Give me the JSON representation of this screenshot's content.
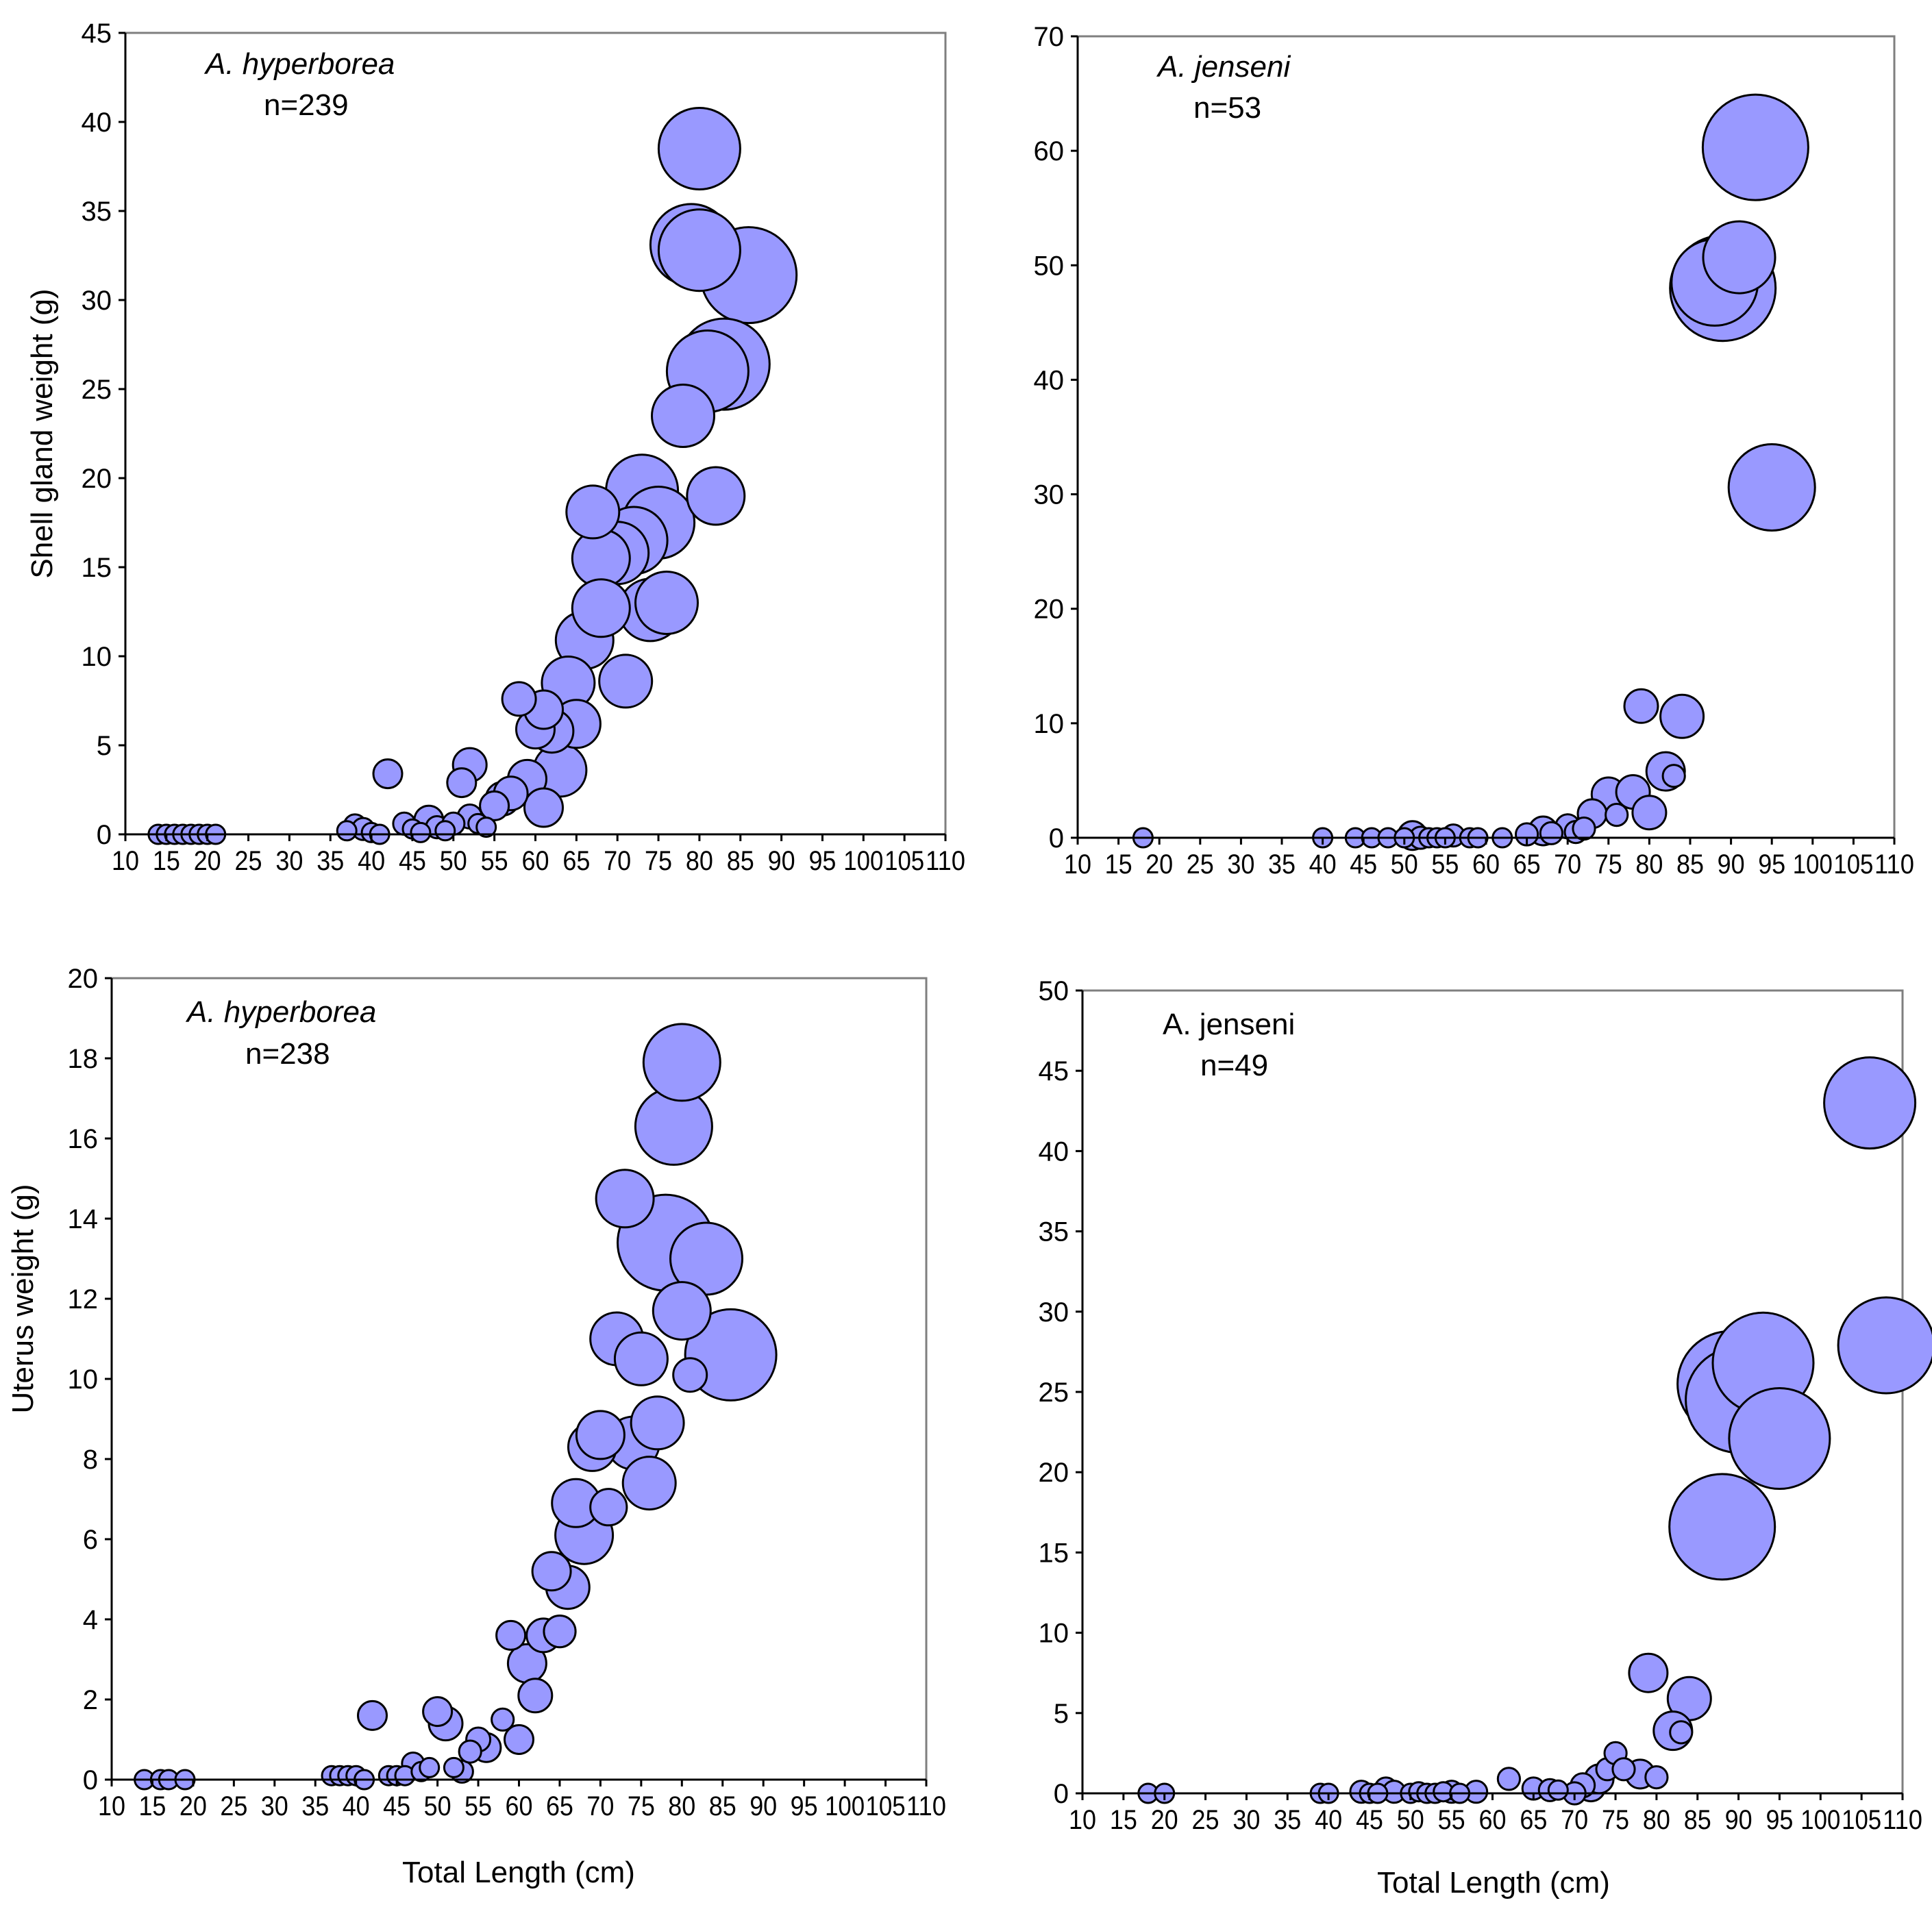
{
  "chart_data": [
    {
      "type": "scatter",
      "id": "shell-hyperborea",
      "species": "A. hyperborea",
      "species_italic": true,
      "n_label": "n=239",
      "ylabel": "Shell gland weight (g)",
      "xlabel": "",
      "xlim": [
        10,
        110
      ],
      "ylim": [
        0,
        45
      ],
      "xticks": [
        10,
        15,
        20,
        25,
        30,
        35,
        40,
        45,
        50,
        55,
        60,
        65,
        70,
        75,
        80,
        85,
        90,
        95,
        100,
        105,
        110
      ],
      "yticks": [
        0,
        5,
        10,
        15,
        20,
        25,
        30,
        35,
        40,
        45
      ],
      "points": [
        [
          14,
          0,
          2
        ],
        [
          15,
          0,
          2
        ],
        [
          16,
          0,
          2
        ],
        [
          17,
          0,
          2
        ],
        [
          18,
          0,
          2
        ],
        [
          19,
          0,
          2
        ],
        [
          20,
          0,
          2
        ],
        [
          21,
          0,
          2
        ],
        [
          37,
          0.2,
          2
        ],
        [
          38,
          0.5,
          2.3
        ],
        [
          39,
          0.3,
          2.3
        ],
        [
          40,
          0.1,
          2
        ],
        [
          41,
          0,
          2
        ],
        [
          42,
          3.4,
          3
        ],
        [
          44,
          0.6,
          2.3
        ],
        [
          45,
          0.3,
          2
        ],
        [
          46,
          0.1,
          2
        ],
        [
          47,
          0.8,
          3
        ],
        [
          48,
          0.4,
          2.3
        ],
        [
          49,
          0.2,
          2
        ],
        [
          50,
          0.6,
          2.3
        ],
        [
          51,
          2.9,
          3
        ],
        [
          52,
          3.9,
          3.5
        ],
        [
          52,
          1,
          2.5
        ],
        [
          53,
          0.6,
          2
        ],
        [
          54,
          0.4,
          2
        ],
        [
          55,
          1.6,
          3
        ],
        [
          56,
          2,
          3.5
        ],
        [
          57,
          2.3,
          3.5
        ],
        [
          58,
          7.6,
          3.5
        ],
        [
          59,
          3.1,
          4
        ],
        [
          60,
          5.9,
          4
        ],
        [
          61,
          1.5,
          4
        ],
        [
          61,
          7,
          4
        ],
        [
          62,
          5.8,
          4.5
        ],
        [
          63,
          3.6,
          5.5
        ],
        [
          64,
          8.5,
          5.5
        ],
        [
          65,
          6.2,
          5
        ],
        [
          66,
          10.9,
          6
        ],
        [
          67,
          18.1,
          5.5
        ],
        [
          68,
          15.5,
          6
        ],
        [
          68,
          12.7,
          6
        ],
        [
          70,
          15.8,
          6.5
        ],
        [
          71,
          8.6,
          5.5
        ],
        [
          72,
          16.5,
          7
        ],
        [
          73,
          19.3,
          7.5
        ],
        [
          74,
          12.6,
          6.5
        ],
        [
          75,
          17.5,
          7.5
        ],
        [
          76,
          13,
          6.5
        ],
        [
          78,
          23.5,
          6.5
        ],
        [
          79,
          33.1,
          8.5
        ],
        [
          80,
          38.5,
          8.5
        ],
        [
          80,
          32.8,
          8.5
        ],
        [
          81,
          26,
          8.5
        ],
        [
          82,
          19,
          6
        ],
        [
          83,
          26.4,
          9.5
        ],
        [
          86,
          31.4,
          10
        ]
      ]
    },
    {
      "type": "scatter",
      "id": "shell-jenseni",
      "species": "A. jenseni",
      "species_italic": true,
      "n_label": "n=53",
      "ylabel": "",
      "xlabel": "",
      "xlim": [
        10,
        110
      ],
      "ylim": [
        0,
        70
      ],
      "xticks": [
        10,
        15,
        20,
        25,
        30,
        35,
        40,
        45,
        50,
        55,
        60,
        65,
        70,
        75,
        80,
        85,
        90,
        95,
        100,
        105,
        110
      ],
      "yticks": [
        0,
        10,
        20,
        30,
        40,
        50,
        60,
        70
      ],
      "points": [
        [
          18,
          0,
          2
        ],
        [
          40,
          0,
          2
        ],
        [
          44,
          0,
          2
        ],
        [
          46,
          0,
          2
        ],
        [
          48,
          0,
          2
        ],
        [
          50,
          0,
          2
        ],
        [
          51,
          0.2,
          3
        ],
        [
          52,
          0,
          2.3
        ],
        [
          53,
          0,
          2
        ],
        [
          54,
          0,
          2
        ],
        [
          55,
          0,
          2
        ],
        [
          56,
          0.2,
          2.3
        ],
        [
          58,
          0,
          2
        ],
        [
          59,
          0,
          2
        ],
        [
          62,
          0,
          2
        ],
        [
          65,
          0.3,
          2.3
        ],
        [
          67,
          0.6,
          3
        ],
        [
          68,
          0.4,
          2.3
        ],
        [
          70,
          1,
          2.5
        ],
        [
          71,
          0.5,
          2.3
        ],
        [
          72,
          0.8,
          2.3
        ],
        [
          73,
          2.1,
          3
        ],
        [
          75,
          3.8,
          3.5
        ],
        [
          76,
          2,
          2.3
        ],
        [
          78,
          4,
          3.5
        ],
        [
          79,
          11.5,
          3.5
        ],
        [
          80,
          2.2,
          3.5
        ],
        [
          82,
          5.8,
          4
        ],
        [
          83,
          5.4,
          2.3
        ],
        [
          84,
          10.6,
          4.5
        ],
        [
          88,
          48.5,
          9
        ],
        [
          89,
          48,
          11
        ],
        [
          91,
          50.7,
          7.5
        ],
        [
          93,
          60.3,
          11
        ],
        [
          95,
          30.6,
          9
        ]
      ]
    },
    {
      "type": "scatter",
      "id": "uterus-hyperborea",
      "species": "A. hyperborea",
      "species_italic": true,
      "n_label": "n=238",
      "ylabel": "Uterus weight (g)",
      "xlabel": "Total Length (cm)",
      "xlim": [
        10,
        110
      ],
      "ylim": [
        0,
        20
      ],
      "xticks": [
        10,
        15,
        20,
        25,
        30,
        35,
        40,
        45,
        50,
        55,
        60,
        65,
        70,
        75,
        80,
        85,
        90,
        95,
        100,
        105,
        110
      ],
      "yticks": [
        0,
        2,
        4,
        6,
        8,
        10,
        12,
        14,
        16,
        18,
        20
      ],
      "points": [
        [
          14,
          0,
          2
        ],
        [
          16,
          0,
          2
        ],
        [
          17,
          0,
          2
        ],
        [
          19,
          0,
          2
        ],
        [
          37,
          0.1,
          2
        ],
        [
          38,
          0.1,
          2
        ],
        [
          39,
          0.1,
          2
        ],
        [
          40,
          0.1,
          2
        ],
        [
          41,
          0,
          2
        ],
        [
          42,
          1.6,
          3
        ],
        [
          44,
          0.1,
          2
        ],
        [
          45,
          0.1,
          2
        ],
        [
          46,
          0.1,
          2
        ],
        [
          47,
          0.4,
          2.3
        ],
        [
          48,
          0.2,
          2
        ],
        [
          49,
          0.3,
          2
        ],
        [
          50,
          1.7,
          3
        ],
        [
          51,
          1.4,
          3.5
        ],
        [
          52,
          0.3,
          2
        ],
        [
          53,
          0.2,
          2.3
        ],
        [
          54,
          0.7,
          2.3
        ],
        [
          55,
          1,
          2.5
        ],
        [
          56,
          0.8,
          3
        ],
        [
          58,
          1.5,
          2.3
        ],
        [
          59,
          3.6,
          3
        ],
        [
          60,
          1,
          3
        ],
        [
          61,
          2.9,
          4
        ],
        [
          62,
          2.1,
          3.5
        ],
        [
          63,
          3.6,
          3.5
        ],
        [
          64,
          5.2,
          4
        ],
        [
          65,
          3.7,
          3.3
        ],
        [
          66,
          4.8,
          4.5
        ],
        [
          67,
          6.9,
          5
        ],
        [
          68,
          6.1,
          6
        ],
        [
          69,
          8.3,
          5
        ],
        [
          70,
          8.6,
          5
        ],
        [
          71,
          6.8,
          3.8
        ],
        [
          72,
          11,
          5.5
        ],
        [
          73,
          14.5,
          6
        ],
        [
          74,
          8.4,
          5.5
        ],
        [
          75,
          10.5,
          5.5
        ],
        [
          76,
          7.4,
          5.5
        ],
        [
          77,
          8.9,
          5.5
        ],
        [
          78,
          13.4,
          10
        ],
        [
          79,
          16.3,
          8
        ],
        [
          80,
          17.9,
          8
        ],
        [
          80,
          11.7,
          6
        ],
        [
          81,
          10.1,
          3.5
        ],
        [
          83,
          13,
          7.5
        ],
        [
          86,
          10.6,
          9.5
        ]
      ]
    },
    {
      "type": "scatter",
      "id": "uterus-jenseni",
      "species": "A. jenseni",
      "species_italic": false,
      "n_label": "n=49",
      "ylabel": "",
      "xlabel": "Total Length (cm)",
      "xlim": [
        10,
        110
      ],
      "ylim": [
        0,
        50
      ],
      "xticks": [
        10,
        15,
        20,
        25,
        30,
        35,
        40,
        45,
        50,
        55,
        60,
        65,
        70,
        75,
        80,
        85,
        90,
        95,
        100,
        105,
        110
      ],
      "yticks": [
        0,
        5,
        10,
        15,
        20,
        25,
        30,
        35,
        40,
        45,
        50
      ],
      "points": [
        [
          18,
          0,
          2
        ],
        [
          20,
          0,
          2
        ],
        [
          39,
          0,
          2
        ],
        [
          40,
          0,
          2
        ],
        [
          44,
          0.1,
          2.3
        ],
        [
          45,
          0,
          2
        ],
        [
          46,
          0,
          2
        ],
        [
          47,
          0.3,
          2.3
        ],
        [
          48,
          0.1,
          2.3
        ],
        [
          50,
          0,
          2
        ],
        [
          51,
          0.1,
          2
        ],
        [
          52,
          0,
          2
        ],
        [
          53,
          0,
          2
        ],
        [
          54,
          0.1,
          2
        ],
        [
          55,
          0.1,
          2.3
        ],
        [
          56,
          0,
          2
        ],
        [
          58,
          0.1,
          2.3
        ],
        [
          62,
          0.9,
          2.3
        ],
        [
          65,
          0.3,
          2.3
        ],
        [
          67,
          0.2,
          2.3
        ],
        [
          68,
          0.2,
          2
        ],
        [
          70,
          0,
          2.3
        ],
        [
          71,
          0.5,
          2.5
        ],
        [
          72,
          0.4,
          3
        ],
        [
          73,
          0.9,
          3
        ],
        [
          74,
          1.5,
          2.3
        ],
        [
          75,
          2.5,
          2.3
        ],
        [
          76,
          1.5,
          2.3
        ],
        [
          78,
          1.2,
          3
        ],
        [
          79,
          7.5,
          4
        ],
        [
          80,
          1,
          2.3
        ],
        [
          82,
          3.9,
          4
        ],
        [
          83,
          3.8,
          2.3
        ],
        [
          84,
          5.9,
          4.5
        ],
        [
          88,
          16.6,
          11
        ],
        [
          89,
          25.5,
          11
        ],
        [
          90,
          24.5,
          11
        ],
        [
          93,
          26.8,
          10.5
        ],
        [
          95,
          22.1,
          10.5
        ],
        [
          106,
          43,
          9.5
        ],
        [
          108,
          27.9,
          10
        ]
      ]
    }
  ]
}
